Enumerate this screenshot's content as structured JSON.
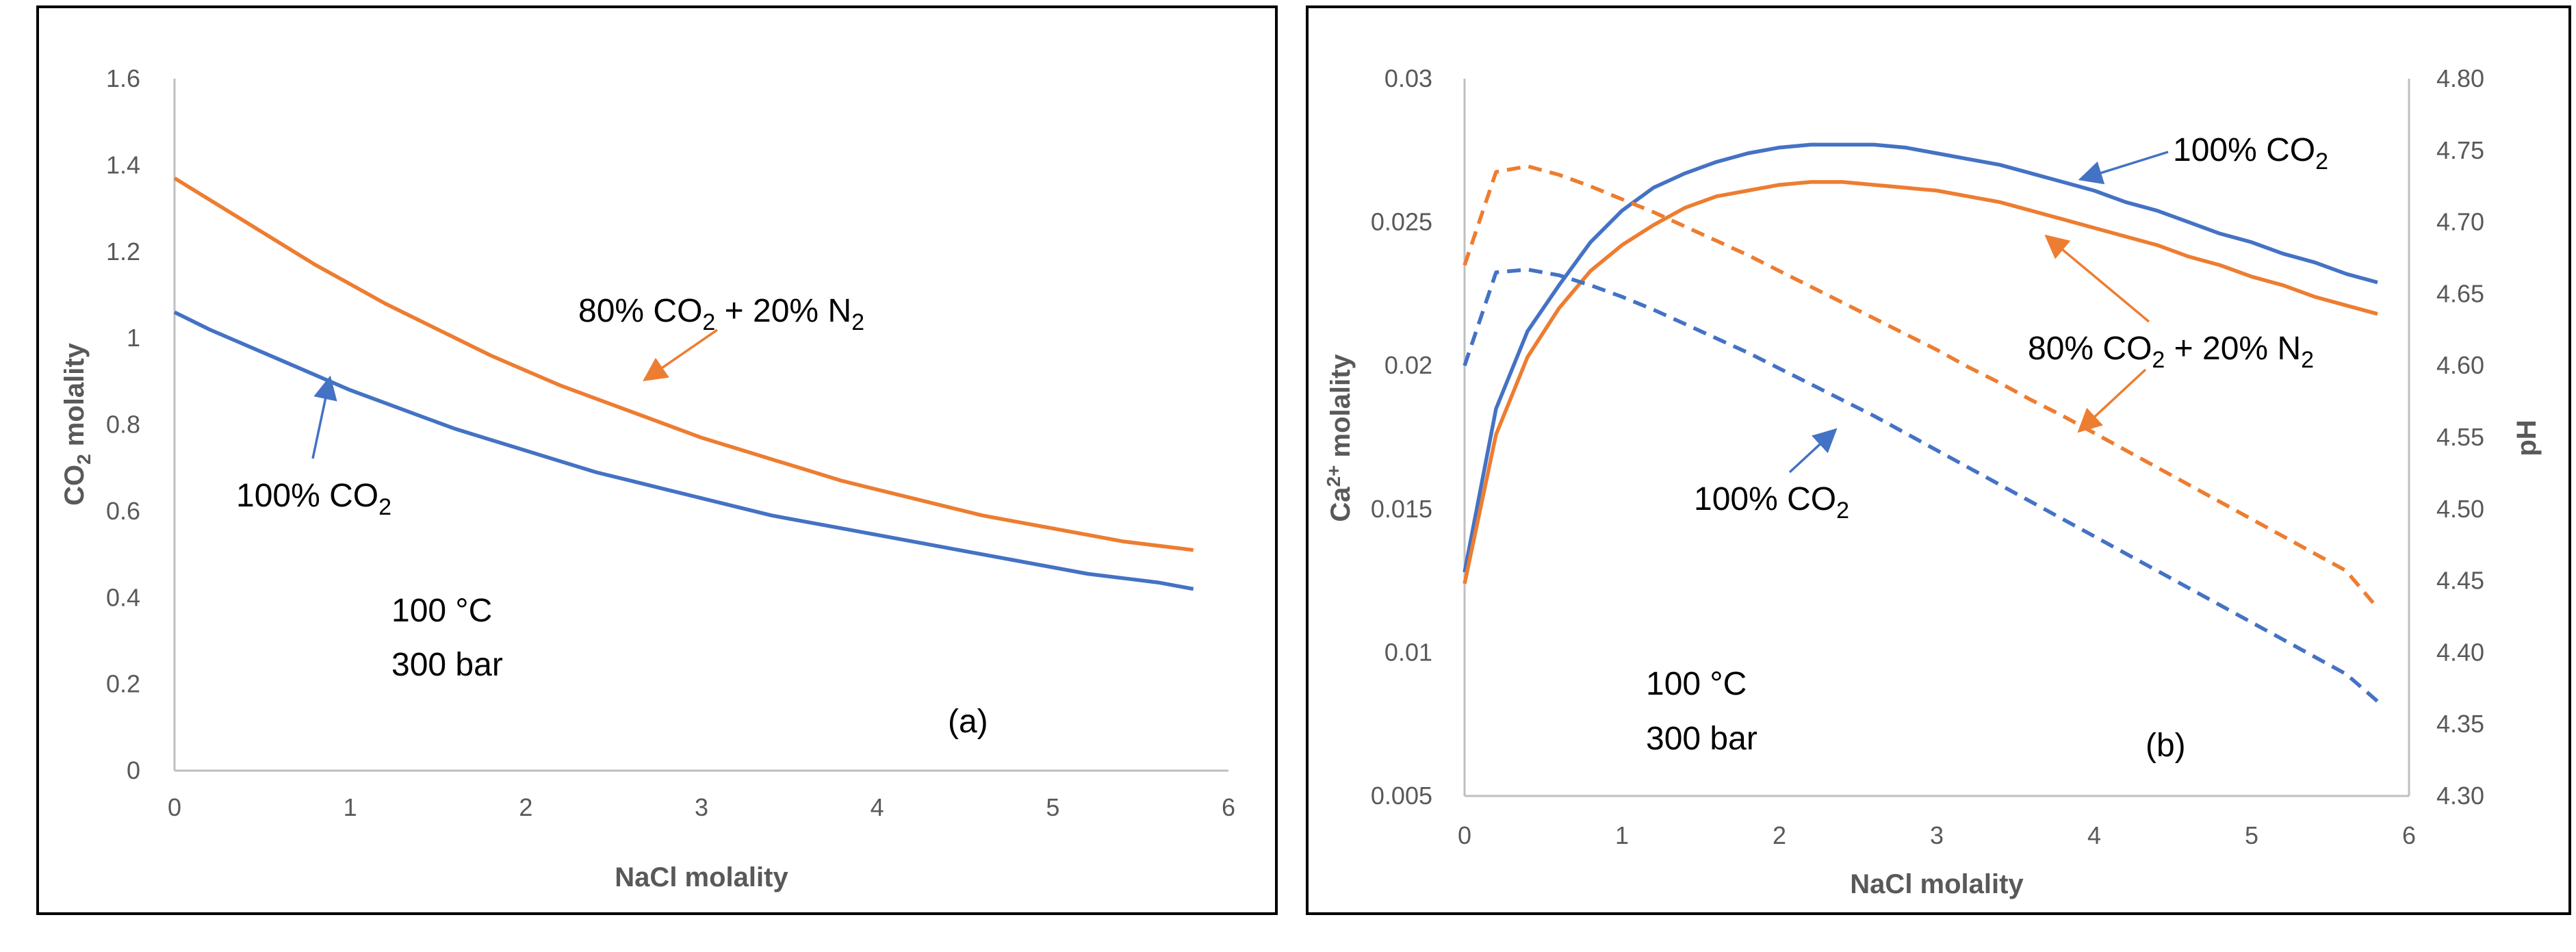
{
  "chart_data": [
    {
      "type": "line",
      "panel_label": "(a)",
      "xlabel": "NaCl molality",
      "ylabel": "CO",
      "ylabel_sub": "2",
      "ylabel_tail": " molality",
      "xlim": [
        0,
        6
      ],
      "ylim": [
        0,
        1.6
      ],
      "xticks": [
        "0",
        "1",
        "2",
        "3",
        "4",
        "5",
        "6"
      ],
      "yticks": [
        "0",
        "0.2",
        "0.4",
        "0.6",
        "0.8",
        "1",
        "1.2",
        "1.4",
        "1.6"
      ],
      "x": [
        0,
        0.2,
        0.4,
        0.6,
        0.8,
        1.0,
        1.2,
        1.4,
        1.6,
        1.8,
        2.0,
        2.2,
        2.4,
        2.6,
        2.8,
        3.0,
        3.2,
        3.4,
        3.6,
        3.8,
        4.0,
        4.2,
        4.4,
        4.6,
        4.8,
        5.0,
        5.2,
        5.4,
        5.6,
        5.8
      ],
      "series": [
        {
          "name": "80% CO2 + 20% N2",
          "color": "#ED7D31",
          "dash": "solid",
          "values": [
            1.37,
            1.32,
            1.27,
            1.22,
            1.17,
            1.125,
            1.08,
            1.04,
            1.0,
            0.96,
            0.925,
            0.89,
            0.86,
            0.83,
            0.8,
            0.77,
            0.745,
            0.72,
            0.695,
            0.67,
            0.65,
            0.63,
            0.61,
            0.59,
            0.575,
            0.56,
            0.545,
            0.53,
            0.52,
            0.51
          ]
        },
        {
          "name": "100% CO2",
          "color": "#4472C4",
          "dash": "solid",
          "values": [
            1.06,
            1.02,
            0.985,
            0.95,
            0.915,
            0.88,
            0.85,
            0.82,
            0.79,
            0.765,
            0.74,
            0.715,
            0.69,
            0.67,
            0.65,
            0.63,
            0.61,
            0.59,
            0.575,
            0.56,
            0.545,
            0.53,
            0.515,
            0.5,
            0.485,
            0.47,
            0.455,
            0.445,
            0.435,
            0.42
          ]
        }
      ],
      "annotations": [
        {
          "main": "80% CO",
          "sub": "2",
          "tail": " + 20% N",
          "sub2": "2"
        },
        {
          "main": "100% CO",
          "sub": "2",
          "tail": "",
          "sub2": ""
        },
        {
          "main": "100 °C",
          "sub": "",
          "tail": "",
          "sub2": ""
        },
        {
          "main": "300 bar",
          "sub": "",
          "tail": "",
          "sub2": ""
        }
      ]
    },
    {
      "type": "line",
      "panel_label": "(b)",
      "xlabel": "NaCl molality",
      "ylabel": "Ca",
      "ylabel_sup": "2+",
      "ylabel_tail": " molality",
      "y2label": "pH",
      "xlim": [
        0,
        6
      ],
      "ylim": [
        0.005,
        0.03
      ],
      "y2lim": [
        4.3,
        4.8
      ],
      "xticks": [
        "0",
        "1",
        "2",
        "3",
        "4",
        "5",
        "6"
      ],
      "yticks": [
        "0.005",
        "0.01",
        "0.015",
        "0.02",
        "0.025",
        "0.03"
      ],
      "y2ticks": [
        "4.30",
        "4.35",
        "4.40",
        "4.45",
        "4.50",
        "4.55",
        "4.60",
        "4.65",
        "4.70",
        "4.75",
        "4.80"
      ],
      "x": [
        0,
        0.2,
        0.4,
        0.6,
        0.8,
        1.0,
        1.2,
        1.4,
        1.6,
        1.8,
        2.0,
        2.2,
        2.4,
        2.6,
        2.8,
        3.0,
        3.2,
        3.4,
        3.6,
        3.8,
        4.0,
        4.2,
        4.4,
        4.6,
        4.8,
        5.0,
        5.2,
        5.4,
        5.6,
        5.8
      ],
      "series": [
        {
          "name": "100% CO2 (Ca2+)",
          "color": "#4472C4",
          "dash": "solid",
          "axis": "left",
          "values": [
            0.0128,
            0.0185,
            0.0212,
            0.0228,
            0.0243,
            0.0254,
            0.0262,
            0.0267,
            0.0271,
            0.0274,
            0.0276,
            0.0277,
            0.0277,
            0.0277,
            0.0276,
            0.0274,
            0.0272,
            0.027,
            0.0267,
            0.0264,
            0.0261,
            0.0257,
            0.0254,
            0.025,
            0.0246,
            0.0243,
            0.0239,
            0.0236,
            0.0232,
            0.0229
          ]
        },
        {
          "name": "80% CO2 + 20% N2 (Ca2+)",
          "color": "#ED7D31",
          "dash": "solid",
          "axis": "left",
          "values": [
            0.0124,
            0.0176,
            0.0203,
            0.022,
            0.0233,
            0.0242,
            0.0249,
            0.0255,
            0.0259,
            0.0261,
            0.0263,
            0.0264,
            0.0264,
            0.0263,
            0.0262,
            0.0261,
            0.0259,
            0.0257,
            0.0254,
            0.0251,
            0.0248,
            0.0245,
            0.0242,
            0.0238,
            0.0235,
            0.0231,
            0.0228,
            0.0224,
            0.0221,
            0.0218
          ]
        },
        {
          "name": "80% CO2 + 20% N2 (pH)",
          "color": "#ED7D31",
          "dash": "dashed",
          "axis": "right",
          "values": [
            4.67,
            4.735,
            4.739,
            4.733,
            4.725,
            4.716,
            4.707,
            4.697,
            4.687,
            4.677,
            4.666,
            4.655,
            4.644,
            4.633,
            4.622,
            4.611,
            4.599,
            4.588,
            4.576,
            4.565,
            4.553,
            4.541,
            4.529,
            4.517,
            4.505,
            4.493,
            4.481,
            4.469,
            4.457,
            4.431
          ]
        },
        {
          "name": "100% CO2 (pH)",
          "color": "#4472C4",
          "dash": "dashed",
          "axis": "right",
          "values": [
            4.6,
            4.665,
            4.667,
            4.663,
            4.656,
            4.648,
            4.639,
            4.629,
            4.619,
            4.609,
            4.598,
            4.587,
            4.576,
            4.565,
            4.553,
            4.541,
            4.529,
            4.517,
            4.505,
            4.493,
            4.481,
            4.469,
            4.457,
            4.445,
            4.433,
            4.421,
            4.409,
            4.397,
            4.385,
            4.366
          ]
        }
      ],
      "annotations": [
        {
          "main": "100% CO",
          "sub": "2",
          "tail": "",
          "sub2": ""
        },
        {
          "main": "80% CO",
          "sub": "2",
          "tail": " + 20% N",
          "sub2": "2"
        },
        {
          "main": "100% CO",
          "sub": "2",
          "tail": "",
          "sub2": ""
        },
        {
          "main": "100 °C",
          "sub": "",
          "tail": "",
          "sub2": ""
        },
        {
          "main": "300 bar",
          "sub": "",
          "tail": "",
          "sub2": ""
        }
      ]
    }
  ]
}
